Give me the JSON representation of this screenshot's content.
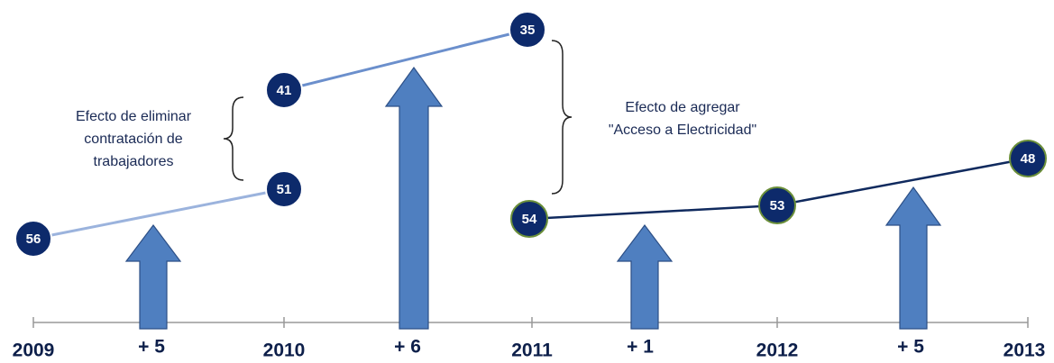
{
  "years": [
    "2009",
    "2010",
    "2011",
    "2012",
    "2013"
  ],
  "nodes": [
    {
      "label": "56"
    },
    {
      "label": "51"
    },
    {
      "label": "41"
    },
    {
      "label": "35"
    },
    {
      "label": "54"
    },
    {
      "label": "53"
    },
    {
      "label": "48"
    }
  ],
  "changes": [
    "+ 5",
    "+ 6",
    "+ 1",
    "+ 5"
  ],
  "annotations": [
    {
      "lines": [
        "Efecto de eliminar",
        "contratación de",
        "trabajadores"
      ]
    },
    {
      "lines": [
        "Efecto de agregar",
        "\"Acceso a Electricidad\""
      ]
    }
  ]
}
